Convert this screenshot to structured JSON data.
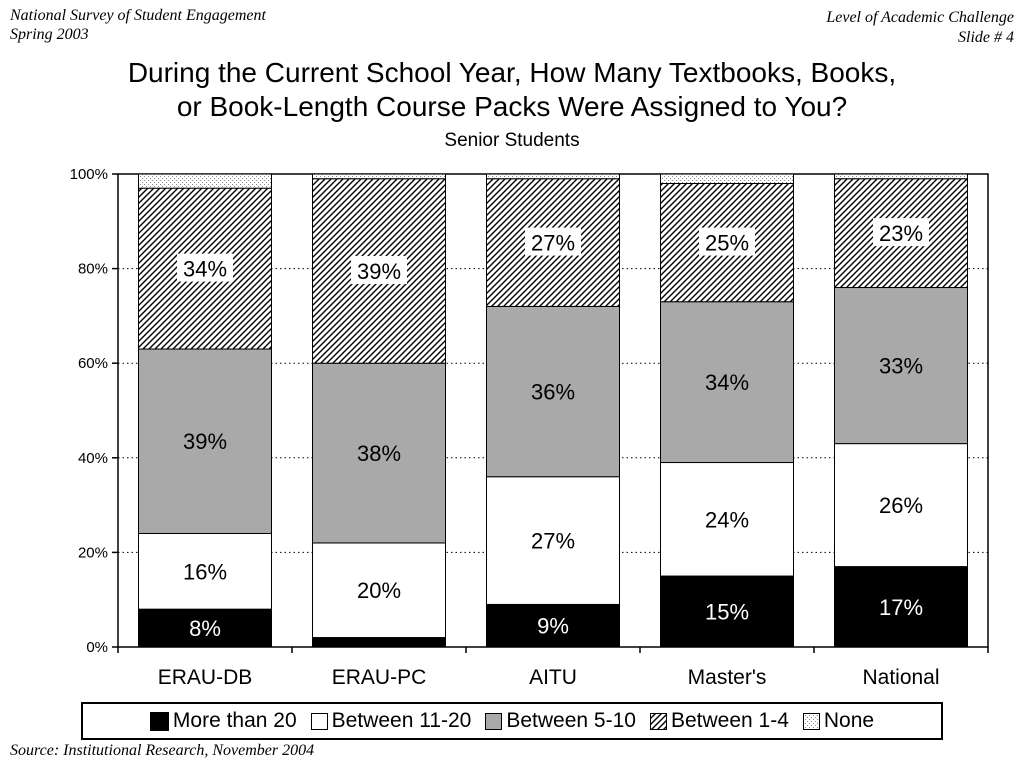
{
  "header": {
    "left_line1": "National Survey of Student Engagement",
    "left_line2": "Spring 2003",
    "right_line1": "Level of Academic Challenge",
    "right_line2": "Slide # 4"
  },
  "footer": {
    "source": "Source: Institutional Research, November 2004"
  },
  "chart_data": {
    "type": "bar",
    "stacked": true,
    "title_line1": "During the Current School Year, How Many Textbooks, Books,",
    "title_line2": "or Book-Length Course Packs Were Assigned to You?",
    "subtitle": "Senior Students",
    "categories": [
      "ERAU-DB",
      "ERAU-PC",
      "AITU",
      "Master's",
      "National"
    ],
    "y_ticks": [
      "0%",
      "20%",
      "40%",
      "60%",
      "80%",
      "100%"
    ],
    "ylim": [
      0,
      100
    ],
    "grid": "horizontal dotted",
    "legend_position": "bottom",
    "series": [
      {
        "name": "More than 20",
        "values": [
          8,
          2,
          9,
          15,
          17
        ],
        "labels": [
          "8%",
          "",
          "9%",
          "15%",
          "17%"
        ],
        "fill": "black"
      },
      {
        "name": "Between 11-20",
        "values": [
          16,
          20,
          27,
          24,
          26
        ],
        "labels": [
          "16%",
          "20%",
          "27%",
          "24%",
          "26%"
        ],
        "fill": "white"
      },
      {
        "name": "Between 5-10",
        "values": [
          39,
          38,
          36,
          34,
          33
        ],
        "labels": [
          "39%",
          "38%",
          "36%",
          "34%",
          "33%"
        ],
        "fill": "gray"
      },
      {
        "name": "Between 1-4",
        "values": [
          34,
          39,
          27,
          25,
          23
        ],
        "labels": [
          "34%",
          "39%",
          "27%",
          "25%",
          "23%"
        ],
        "fill": "diagonal-hatch"
      },
      {
        "name": "None",
        "values": [
          3,
          1,
          1,
          2,
          1
        ],
        "labels": [
          "",
          "",
          "",
          "",
          ""
        ],
        "fill": "dotted"
      }
    ],
    "colors": {
      "black": "#000000",
      "white": "#ffffff",
      "gray": "#a9a9a9",
      "hatch_line": "#000000",
      "dots": "#888888"
    }
  }
}
